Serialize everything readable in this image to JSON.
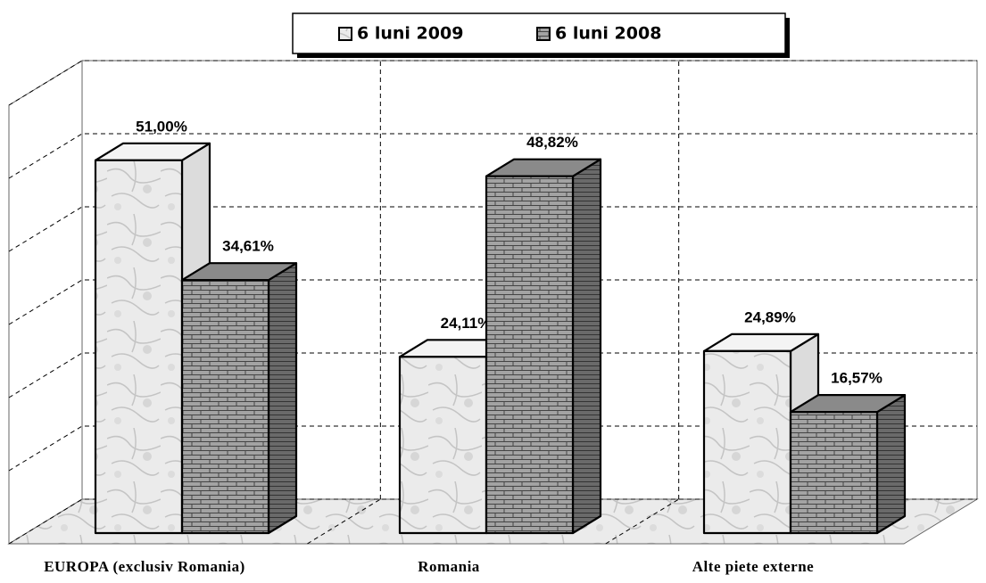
{
  "chart_data": {
    "type": "bar3d",
    "categories": [
      "EUROPA (exclusiv Romania)",
      "Romania",
      "Alte piete externe"
    ],
    "series": [
      {
        "name": "6 luni 2009",
        "color": "#e6e6e6",
        "values": [
          51.0,
          24.11,
          24.89
        ],
        "value_labels": [
          "51,00%",
          "24,11%",
          "24,89%"
        ]
      },
      {
        "name": "6 luni 2008",
        "color": "#9a9a9a",
        "values": [
          34.61,
          48.82,
          16.57
        ],
        "value_labels": [
          "34,61%",
          "48,82%",
          "16,57%"
        ]
      }
    ],
    "ylim": [
      0,
      60
    ],
    "yticks": [
      0,
      10,
      20,
      30,
      40,
      50,
      60
    ],
    "grid": true,
    "legend": "top"
  }
}
